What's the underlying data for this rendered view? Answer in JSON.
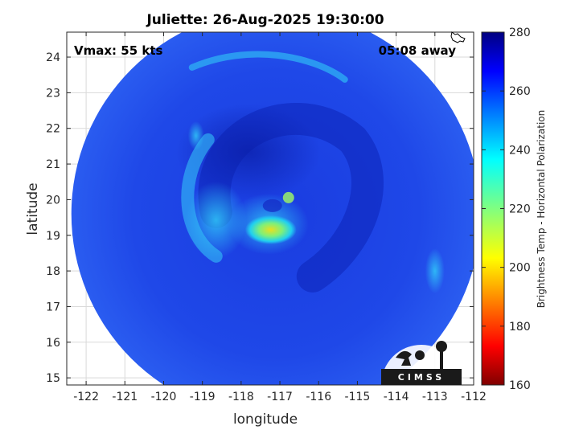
{
  "chart_data": {
    "type": "heatmap",
    "title": "Juliette: 26-Aug-2025 19:30:00",
    "xlabel": "longitude",
    "ylabel": "latitude",
    "xlim": [
      -122.5,
      -112
    ],
    "ylim": [
      14.8,
      24.7
    ],
    "x_ticks": [
      -122,
      -121,
      -120,
      -119,
      -118,
      -117,
      -116,
      -115,
      -114,
      -113,
      -112
    ],
    "y_ticks": [
      15,
      16,
      17,
      18,
      19,
      20,
      21,
      22,
      23,
      24
    ],
    "grid": true,
    "swath": {
      "center_lon": -117.1,
      "center_lat": 19.6,
      "radius_deg": 5.5
    },
    "storm_center": {
      "lon": -117.4,
      "lat": 19.2
    },
    "annotations": {
      "vmax": "Vmax: 55 kts",
      "time_away": "05:08 away"
    },
    "colorbar": {
      "label": "Brightness Temp - Horizontal Polarization",
      "min": 160,
      "max": 280,
      "ticks": [
        160,
        180,
        200,
        220,
        240,
        260,
        280
      ],
      "colormap": "jet"
    },
    "logo": "CIMSS"
  }
}
